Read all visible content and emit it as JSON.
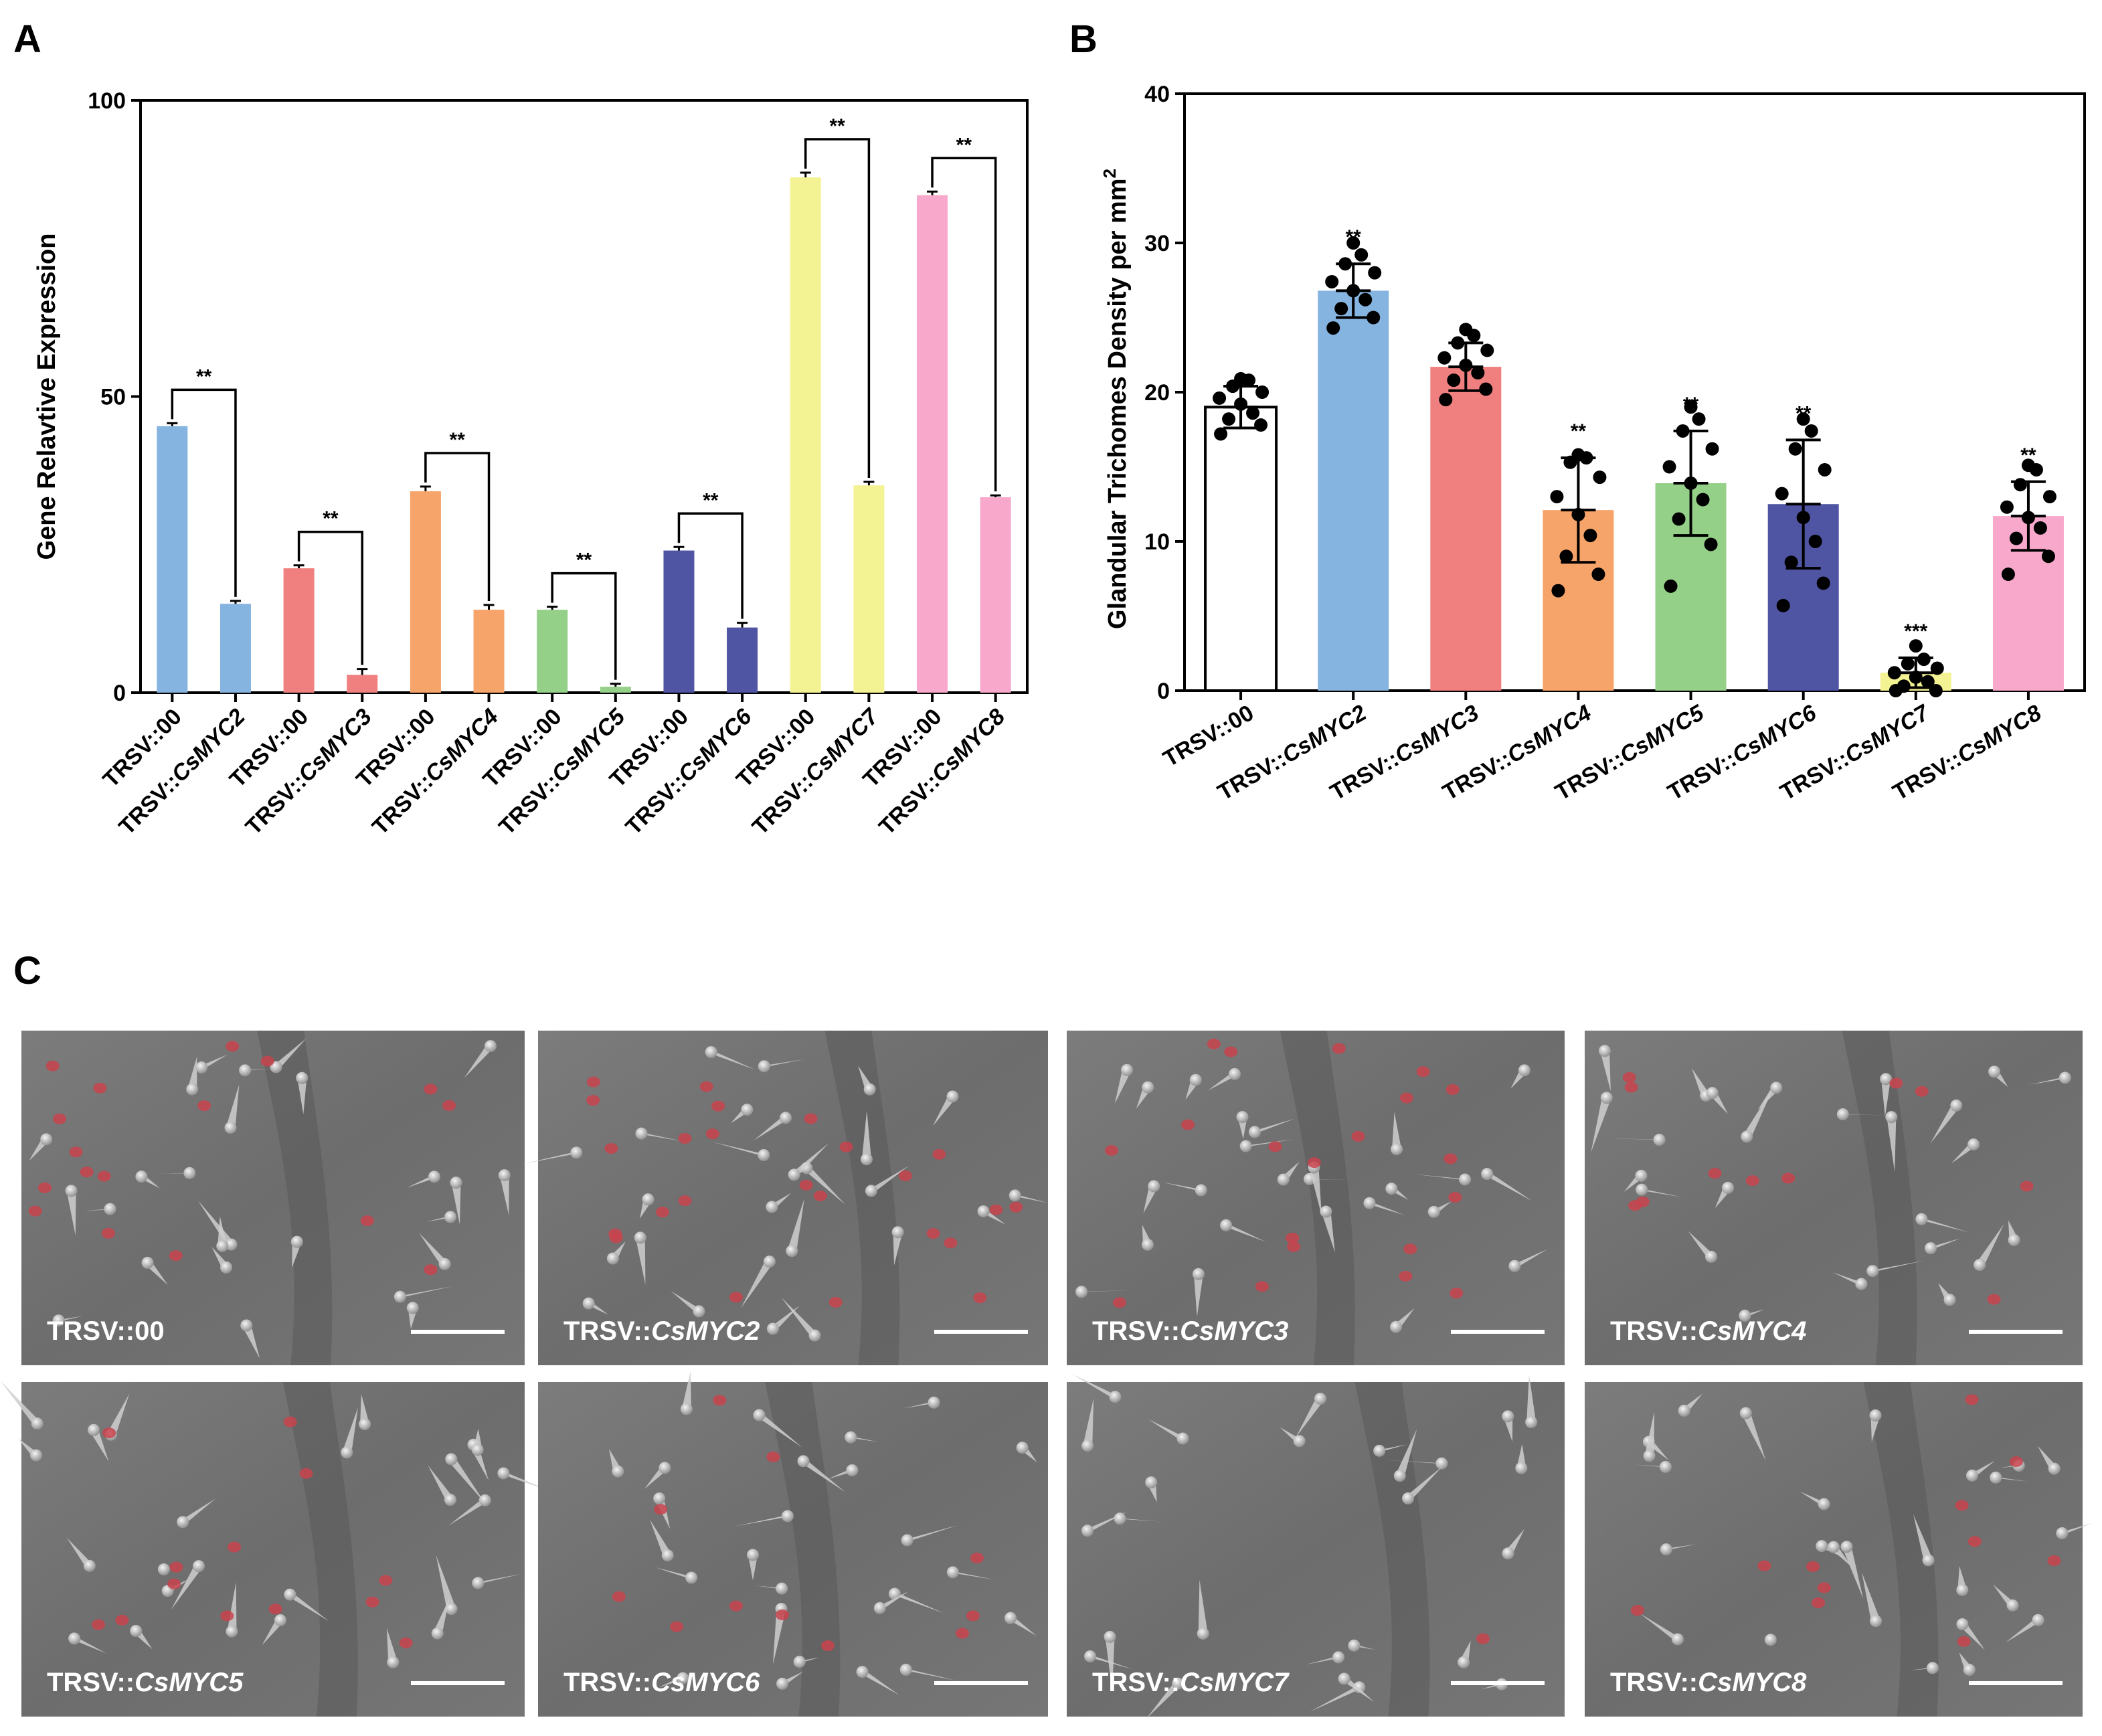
{
  "panels": {
    "a": "A",
    "b": "B",
    "c": "C"
  },
  "chart_data": [
    {
      "id": "A",
      "type": "bar",
      "ylabel": "Gene Relavtive Expression",
      "ylim": [
        0,
        100
      ],
      "yticks": [
        0,
        50,
        100
      ],
      "categories": [
        "TRSV::00",
        "TRSV::CsMYC2",
        "TRSV::00",
        "TRSV::CsMYC3",
        "TRSV::00",
        "TRSV::CsMYC4",
        "TRSV::00",
        "TRSV::CsMYC5",
        "TRSV::00",
        "TRSV::CsMYC6",
        "TRSV::00",
        "TRSV::CsMYC7",
        "TRSV::00",
        "TRSV::CsMYC8"
      ],
      "values": [
        45,
        15,
        21,
        3,
        34,
        14,
        14,
        1,
        24,
        11,
        87,
        35,
        84,
        33
      ],
      "errors": [
        0.5,
        0.5,
        0.5,
        1,
        0.8,
        0.8,
        0.5,
        0.5,
        0.6,
        0.8,
        0.8,
        0.6,
        0.6,
        0.3
      ],
      "colors": [
        "#86b4e0",
        "#86b4e0",
        "#f08080",
        "#f08080",
        "#f7a46a",
        "#f7a46a",
        "#95d088",
        "#95d088",
        "#4f54a3",
        "#4f54a3",
        "#f4f394",
        "#f4f394",
        "#f7a8cb",
        "#f7a8cb"
      ],
      "comparisons": [
        {
          "pair": [
            0,
            1
          ],
          "label": "**"
        },
        {
          "pair": [
            2,
            3
          ],
          "label": "**"
        },
        {
          "pair": [
            4,
            5
          ],
          "label": "**"
        },
        {
          "pair": [
            6,
            7
          ],
          "label": "**"
        },
        {
          "pair": [
            8,
            9
          ],
          "label": "**"
        },
        {
          "pair": [
            10,
            11
          ],
          "label": "**"
        },
        {
          "pair": [
            12,
            13
          ],
          "label": "**"
        }
      ]
    },
    {
      "id": "B",
      "type": "bar",
      "ylabel": "Glandular Trichomes Density per mm",
      "ylabel_sup": "2",
      "ylim": [
        0,
        40
      ],
      "yticks": [
        0,
        10,
        20,
        30,
        40
      ],
      "categories": [
        "TRSV::00",
        "TRSV::CsMYC2",
        "TRSV::CsMYC3",
        "TRSV::CsMYC4",
        "TRSV::CsMYC5",
        "TRSV::CsMYC6",
        "TRSV::CsMYC7",
        "TRSV::CsMYC8"
      ],
      "values": [
        19,
        26.8,
        21.7,
        12.1,
        13.9,
        12.5,
        1.2,
        11.7
      ],
      "sd": [
        1.4,
        1.8,
        1.6,
        3.5,
        3.5,
        4.3,
        1,
        2.3
      ],
      "significance": [
        "",
        "**",
        "",
        "**",
        "**",
        "**",
        "***",
        "**"
      ],
      "colors": [
        "#ffffff",
        "#86b4e0",
        "#f08080",
        "#f7a46a",
        "#95d088",
        "#4f54a3",
        "#f4f394",
        "#f7a8cb"
      ],
      "points": [
        [
          17.2,
          17.8,
          18.2,
          18.6,
          19.2,
          19.6,
          20,
          20.4,
          20.8,
          20.9
        ],
        [
          24.3,
          25.0,
          25.6,
          26.2,
          26.8,
          27.4,
          28.0,
          28.6,
          29.2,
          30.0
        ],
        [
          19.5,
          20.2,
          20.8,
          21.3,
          21.8,
          22.3,
          22.8,
          23.3,
          23.8,
          24.2
        ],
        [
          6.7,
          7.8,
          9.0,
          10.4,
          11.8,
          13.0,
          14.3,
          15.3,
          15.6,
          15.8
        ],
        [
          7.0,
          9.8,
          11.5,
          12.8,
          13.9,
          15.0,
          16.2,
          17.4,
          18.2,
          19.0
        ],
        [
          5.7,
          7.2,
          8.6,
          10.0,
          11.6,
          13.2,
          14.8,
          16.2,
          17.4,
          18.2
        ],
        [
          0.0,
          0.0,
          0.3,
          0.6,
          0.9,
          1.2,
          1.5,
          1.8,
          2.1,
          3.0
        ],
        [
          7.8,
          9.0,
          10.2,
          10.9,
          11.6,
          12.3,
          13.0,
          13.8,
          14.8,
          15.1
        ]
      ]
    }
  ],
  "micrographs": [
    {
      "prefix": "TRSV::",
      "gene": "00",
      "italic": false
    },
    {
      "prefix": "TRSV::",
      "gene": "CsMYC2",
      "italic": true
    },
    {
      "prefix": "TRSV::",
      "gene": "CsMYC3",
      "italic": true
    },
    {
      "prefix": "TRSV::",
      "gene": "CsMYC4",
      "italic": true
    },
    {
      "prefix": "TRSV::",
      "gene": "CsMYC5",
      "italic": true
    },
    {
      "prefix": "TRSV::",
      "gene": "CsMYC6",
      "italic": true
    },
    {
      "prefix": "TRSV::",
      "gene": "CsMYC7",
      "italic": true
    },
    {
      "prefix": "TRSV::",
      "gene": "CsMYC8",
      "italic": true
    }
  ]
}
